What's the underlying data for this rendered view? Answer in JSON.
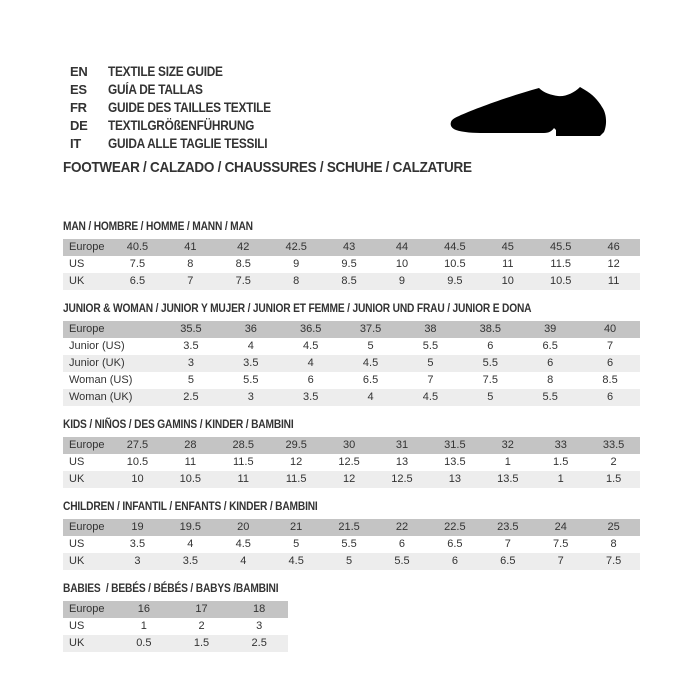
{
  "header": {
    "languages": [
      {
        "code": "EN",
        "label": "TEXTILE SIZE GUIDE"
      },
      {
        "code": "ES",
        "label": "GUÍA DE TALLAS"
      },
      {
        "code": "FR",
        "label": "GUIDE DES TAILLES TEXTILE"
      },
      {
        "code": "DE",
        "label": "TEXTILGRÖßENFÜHRUNG"
      },
      {
        "code": "IT",
        "label": "GUIDA ALLE TAGLIE TESSILI"
      }
    ],
    "category_line": "FOOTWEAR / CALZADO / CHAUSSURES / SCHUHE / CALZATURE",
    "shoe_icon": "dress-shoe-icon"
  },
  "colors": {
    "header_row_bg": "#c4c4c4",
    "alt_row_bg": "#ededed",
    "text": "#333333",
    "shoe": "#000000"
  },
  "tables": [
    {
      "title": "MAN / HOMBRE / HOMME / MANN / MAN",
      "rows": [
        {
          "label": "Europe",
          "values": [
            "40.5",
            "41",
            "42",
            "42.5",
            "43",
            "44",
            "44.5",
            "45",
            "45.5",
            "46"
          ]
        },
        {
          "label": "US",
          "values": [
            "7.5",
            "8",
            "8.5",
            "9",
            "9.5",
            "10",
            "10.5",
            "11",
            "11.5",
            "12"
          ]
        },
        {
          "label": "UK",
          "values": [
            "6.5",
            "7",
            "7.5",
            "8",
            "8.5",
            "9",
            "9.5",
            "10",
            "10.5",
            "11"
          ]
        }
      ]
    },
    {
      "title": "JUNIOR & WOMAN / JUNIOR Y MUJER / JUNIOR ET FEMME / JUNIOR UND FRAU / JUNIOR E DONA",
      "rows": [
        {
          "label": "Europe",
          "values": [
            "35.5",
            "36",
            "36.5",
            "37.5",
            "38",
            "38.5",
            "39",
            "40"
          ]
        },
        {
          "label": "Junior (US)",
          "values": [
            "3.5",
            "4",
            "4.5",
            "5",
            "5.5",
            "6",
            "6.5",
            "7"
          ]
        },
        {
          "label": "Junior (UK)",
          "values": [
            "3",
            "3.5",
            "4",
            "4.5",
            "5",
            "5.5",
            "6",
            "6"
          ]
        },
        {
          "label": "Woman (US)",
          "values": [
            "5",
            "5.5",
            "6",
            "6.5",
            "7",
            "7.5",
            "8",
            "8.5"
          ]
        },
        {
          "label": "Woman (UK)",
          "values": [
            "2.5",
            "3",
            "3.5",
            "4",
            "4.5",
            "5",
            "5.5",
            "6"
          ]
        }
      ]
    },
    {
      "title": "KIDS / NIÑOS / DES GAMINS / KINDER / BAMBINI",
      "rows": [
        {
          "label": "Europe",
          "values": [
            "27.5",
            "28",
            "28.5",
            "29.5",
            "30",
            "31",
            "31.5",
            "32",
            "33",
            "33.5"
          ]
        },
        {
          "label": "US",
          "values": [
            "10.5",
            "11",
            "11.5",
            "12",
            "12.5",
            "13",
            "13.5",
            "1",
            "1.5",
            "2"
          ]
        },
        {
          "label": "UK",
          "values": [
            "10",
            "10.5",
            "11",
            "11.5",
            "12",
            "12.5",
            "13",
            "13.5",
            "1",
            "1.5"
          ]
        }
      ]
    },
    {
      "title": "CHILDREN / INFANTIL / ENFANTS / KINDER / BAMBINI",
      "rows": [
        {
          "label": "Europe",
          "values": [
            "19",
            "19.5",
            "20",
            "21",
            "21.5",
            "22",
            "22.5",
            "23.5",
            "24",
            "25"
          ]
        },
        {
          "label": "US",
          "values": [
            "3.5",
            "4",
            "4.5",
            "5",
            "5.5",
            "6",
            "6.5",
            "7",
            "7.5",
            "8"
          ]
        },
        {
          "label": "UK",
          "values": [
            "3",
            "3.5",
            "4",
            "4.5",
            "5",
            "5.5",
            "6",
            "6.5",
            "7",
            "7.5"
          ]
        }
      ]
    },
    {
      "title": "BABIES  / BEBÉS / BÉBÉS / BABYS /BAMBINI",
      "rows": [
        {
          "label": "Europe",
          "values": [
            "16",
            "17",
            "18"
          ]
        },
        {
          "label": "US",
          "values": [
            "1",
            "2",
            "3"
          ]
        },
        {
          "label": "UK",
          "values": [
            "0.5",
            "1.5",
            "2.5"
          ]
        }
      ]
    }
  ]
}
